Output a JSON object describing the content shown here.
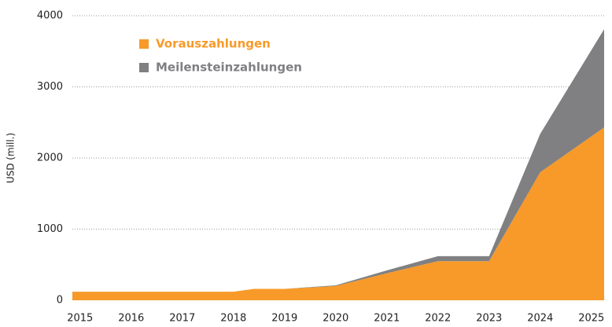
{
  "chart_data": {
    "type": "stacked_area",
    "y_label": "USD (mill.)",
    "x": [
      2014.85,
      2018,
      2018.4,
      2019,
      2020,
      2021,
      2022,
      2023,
      2024,
      2025.25
    ],
    "series": [
      {
        "name": "Vorauszahlungen",
        "color": "#f79a2a",
        "values": [
          120,
          120,
          160,
          160,
          200,
          380,
          550,
          550,
          1800,
          2430
        ]
      },
      {
        "name": "Meilensteinzahlungen",
        "color": "#808083",
        "values": [
          0,
          0,
          0,
          0,
          10,
          40,
          70,
          70,
          540,
          1380
        ]
      }
    ],
    "xlim": [
      2014.85,
      2025.25
    ],
    "xticks": [
      2015,
      2016,
      2017,
      2018,
      2019,
      2020,
      2021,
      2022,
      2023,
      2024,
      2025
    ],
    "ylim": [
      0,
      4000
    ],
    "yticks": [
      0,
      1000,
      2000,
      3000,
      4000
    ],
    "grid": true,
    "legend": "upper left"
  }
}
